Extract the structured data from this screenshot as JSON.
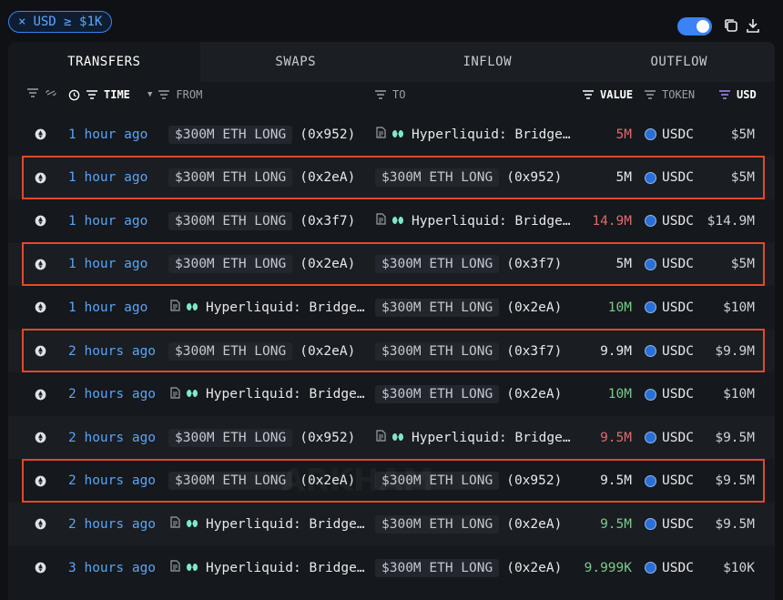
{
  "filter_chip": {
    "close_glyph": "×",
    "label": "USD ≥ $1K"
  },
  "tabs": [
    {
      "label": "TRANSFERS",
      "active": true
    },
    {
      "label": "SWAPS",
      "active": false
    },
    {
      "label": "INFLOW",
      "active": false
    },
    {
      "label": "OUTFLOW",
      "active": false
    }
  ],
  "columns": {
    "time": "TIME",
    "from": "FROM",
    "to": "TO",
    "value": "VALUE",
    "token": "TOKEN",
    "usd": "USD"
  },
  "rows": [
    {
      "time": "1 hour ago",
      "from": {
        "type": "arkham",
        "name": "$300M ETH LONG",
        "addr": "(0x952)"
      },
      "to": {
        "type": "hl",
        "name": "Hyperliquid: Bridge…"
      },
      "value": "5M",
      "value_color": "red",
      "token": "USDC",
      "usd": "$5M",
      "highlighted": false
    },
    {
      "time": "1 hour ago",
      "from": {
        "type": "arkham",
        "name": "$300M ETH LONG",
        "addr": "(0x2eA)"
      },
      "to": {
        "type": "arkham",
        "name": "$300M ETH LONG",
        "addr": "(0x952)"
      },
      "value": "5M",
      "value_color": "white",
      "token": "USDC",
      "usd": "$5M",
      "highlighted": true
    },
    {
      "time": "1 hour ago",
      "from": {
        "type": "arkham",
        "name": "$300M ETH LONG",
        "addr": "(0x3f7)"
      },
      "to": {
        "type": "hl",
        "name": "Hyperliquid: Bridge…"
      },
      "value": "14.9M",
      "value_color": "red",
      "token": "USDC",
      "usd": "$14.9M",
      "highlighted": false
    },
    {
      "time": "1 hour ago",
      "from": {
        "type": "arkham",
        "name": "$300M ETH LONG",
        "addr": "(0x2eA)"
      },
      "to": {
        "type": "arkham",
        "name": "$300M ETH LONG",
        "addr": "(0x3f7)"
      },
      "value": "5M",
      "value_color": "white",
      "token": "USDC",
      "usd": "$5M",
      "highlighted": true
    },
    {
      "time": "1 hour ago",
      "from": {
        "type": "hl",
        "name": "Hyperliquid: Bridge…"
      },
      "to": {
        "type": "arkham",
        "name": "$300M ETH LONG",
        "addr": "(0x2eA)"
      },
      "value": "10M",
      "value_color": "green",
      "token": "USDC",
      "usd": "$10M",
      "highlighted": false
    },
    {
      "time": "2 hours ago",
      "from": {
        "type": "arkham",
        "name": "$300M ETH LONG",
        "addr": "(0x2eA)"
      },
      "to": {
        "type": "arkham",
        "name": "$300M ETH LONG",
        "addr": "(0x3f7)"
      },
      "value": "9.9M",
      "value_color": "white",
      "token": "USDC",
      "usd": "$9.9M",
      "highlighted": true
    },
    {
      "time": "2 hours ago",
      "from": {
        "type": "hl",
        "name": "Hyperliquid: Bridge…"
      },
      "to": {
        "type": "arkham",
        "name": "$300M ETH LONG",
        "addr": "(0x2eA)"
      },
      "value": "10M",
      "value_color": "green",
      "token": "USDC",
      "usd": "$10M",
      "highlighted": false
    },
    {
      "time": "2 hours ago",
      "from": {
        "type": "arkham",
        "name": "$300M ETH LONG",
        "addr": "(0x952)"
      },
      "to": {
        "type": "hl",
        "name": "Hyperliquid: Bridge…"
      },
      "value": "9.5M",
      "value_color": "red",
      "token": "USDC",
      "usd": "$9.5M",
      "highlighted": false
    },
    {
      "time": "2 hours ago",
      "from": {
        "type": "arkham",
        "name": "$300M ETH LONG",
        "addr": "(0x2eA)"
      },
      "to": {
        "type": "arkham",
        "name": "$300M ETH LONG",
        "addr": "(0x952)"
      },
      "value": "9.5M",
      "value_color": "white",
      "token": "USDC",
      "usd": "$9.5M",
      "highlighted": true
    },
    {
      "time": "2 hours ago",
      "from": {
        "type": "hl",
        "name": "Hyperliquid: Bridge…"
      },
      "to": {
        "type": "arkham",
        "name": "$300M ETH LONG",
        "addr": "(0x2eA)"
      },
      "value": "9.5M",
      "value_color": "green",
      "token": "USDC",
      "usd": "$9.5M",
      "highlighted": false
    },
    {
      "time": "3 hours ago",
      "from": {
        "type": "hl",
        "name": "Hyperliquid: Bridge…"
      },
      "to": {
        "type": "arkham",
        "name": "$300M ETH LONG",
        "addr": "(0x2eA)"
      },
      "value": "9.999K",
      "value_color": "green",
      "token": "USDC",
      "usd": "$10K",
      "highlighted": false
    }
  ],
  "watermark": "ARKHAM",
  "colors": {
    "accent": "#3b82f6",
    "highlight_box": "#e04a2a",
    "value_red": "#e06b6b",
    "value_green": "#7cc98a"
  },
  "icons": {
    "chain": "ethereum-icon",
    "token": "usdc-icon",
    "hyperliquid": "hyperliquid-icon",
    "contract": "contract-doc-icon"
  }
}
